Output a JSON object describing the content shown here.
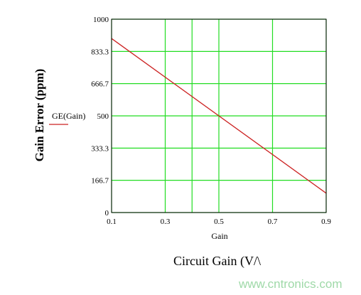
{
  "chart_data": {
    "type": "line",
    "title": "",
    "xlabel_inner": "Gain",
    "xlabel": "Circuit Gain (V/\\",
    "ylabel": "Gain Error (ppm)",
    "xlim": [
      0.1,
      0.9
    ],
    "ylim": [
      0,
      1000
    ],
    "x_ticks": [
      0.1,
      0.3,
      0.5,
      0.7,
      0.9
    ],
    "x_tick_labels": [
      "0.1",
      "0.3",
      "0.5",
      "0.7",
      "0.9"
    ],
    "y_ticks": [
      0,
      166.7,
      333.3,
      500,
      666.7,
      833.3,
      1000
    ],
    "y_tick_labels": [
      "0",
      "166.7",
      "333.3",
      "500",
      "666.7",
      "833.3",
      "1000"
    ],
    "x_grid": [
      0.1,
      0.3,
      0.4,
      0.5,
      0.7,
      0.9
    ],
    "y_grid": [
      0,
      166.7,
      333.3,
      500,
      666.7,
      833.3,
      1000
    ],
    "grid": true,
    "grid_color": "#22dd22",
    "legend_position": "left",
    "series": [
      {
        "name": "GE(Gain)",
        "color": "#cc2222",
        "x": [
          0.1,
          0.9
        ],
        "y": [
          900,
          100
        ]
      }
    ]
  },
  "watermark": {
    "text": "www.cntronics.com",
    "color": "#9fd9a8"
  }
}
